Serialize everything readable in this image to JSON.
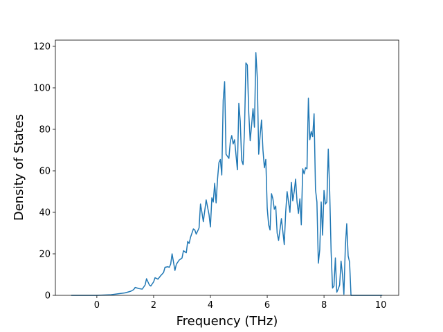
{
  "chart_data": {
    "type": "line",
    "xlabel": "Frequency (THz)",
    "ylabel": "Density of States",
    "xlim": [
      -1.46,
      10.63
    ],
    "ylim": [
      0,
      123
    ],
    "xticks": [
      0,
      2,
      4,
      6,
      8,
      10
    ],
    "yticks": [
      0,
      20,
      40,
      60,
      80,
      100,
      120
    ],
    "series": [
      {
        "color": "#1f77b4",
        "x": [
          -0.9,
          0,
          0.5,
          1.0,
          1.2,
          1.3,
          1.35,
          1.5,
          1.6,
          1.7,
          1.75,
          1.85,
          1.9,
          2.0,
          2.05,
          2.15,
          2.25,
          2.35,
          2.4,
          2.5,
          2.55,
          2.6,
          2.65,
          2.75,
          2.8,
          2.9,
          3.0,
          3.05,
          3.15,
          3.2,
          3.25,
          3.3,
          3.4,
          3.45,
          3.5,
          3.6,
          3.65,
          3.7,
          3.75,
          3.85,
          3.95,
          4.0,
          4.05,
          4.1,
          4.15,
          4.2,
          4.25,
          4.3,
          4.35,
          4.4,
          4.45,
          4.5,
          4.55,
          4.65,
          4.7,
          4.75,
          4.8,
          4.85,
          4.95,
          5.0,
          5.05,
          5.1,
          5.15,
          5.2,
          5.25,
          5.3,
          5.35,
          5.4,
          5.45,
          5.5,
          5.55,
          5.6,
          5.65,
          5.7,
          5.75,
          5.8,
          5.85,
          5.9,
          5.95,
          6.0,
          6.05,
          6.1,
          6.15,
          6.2,
          6.25,
          6.3,
          6.35,
          6.4,
          6.5,
          6.6,
          6.65,
          6.7,
          6.75,
          6.8,
          6.85,
          6.9,
          6.95,
          7.0,
          7.05,
          7.1,
          7.15,
          7.2,
          7.25,
          7.3,
          7.35,
          7.4,
          7.45,
          7.5,
          7.55,
          7.6,
          7.65,
          7.7,
          7.75,
          7.8,
          7.85,
          7.9,
          7.95,
          8.0,
          8.05,
          8.1,
          8.15,
          8.2,
          8.25,
          8.3,
          8.35,
          8.4,
          8.45,
          8.5,
          8.55,
          8.6,
          8.65,
          8.7,
          8.75,
          8.8,
          8.85,
          8.9,
          8.95,
          9.5,
          10.05
        ],
        "values": [
          0,
          0,
          0.3,
          1.2,
          2,
          2.8,
          3.8,
          3.2,
          3,
          5,
          8,
          5,
          4.5,
          6.5,
          8.5,
          7.8,
          9.5,
          11,
          13.5,
          13.8,
          13.5,
          15,
          20,
          12,
          15,
          17,
          18,
          21.5,
          20.5,
          26,
          25,
          28,
          32,
          31.5,
          29.5,
          32.5,
          44,
          40,
          35.5,
          46,
          39,
          33,
          47,
          45,
          54,
          44.5,
          56,
          64,
          65.5,
          58,
          94,
          103,
          68,
          66,
          74,
          77,
          73,
          75,
          60.5,
          92.5,
          84,
          65,
          63,
          80,
          112,
          111,
          88,
          74.5,
          82,
          90,
          81,
          117,
          105,
          68,
          77,
          84.5,
          70,
          61.5,
          65.5,
          42,
          34,
          31.5,
          49,
          46.5,
          41.5,
          43,
          30,
          26.5,
          37,
          24.5,
          40,
          50,
          45,
          40,
          54.5,
          45.5,
          50,
          56,
          45,
          39.5,
          46.5,
          34,
          61,
          58.5,
          61.5,
          61,
          95,
          75,
          79,
          76.5,
          87.5,
          51,
          45,
          15.5,
          22,
          45,
          29,
          50.5,
          44,
          45,
          70.5,
          50,
          21,
          3.5,
          4.5,
          18,
          1.5,
          3,
          5,
          16.5,
          10,
          0.5,
          23,
          34.5,
          19,
          16,
          0,
          0,
          0
        ]
      }
    ]
  }
}
